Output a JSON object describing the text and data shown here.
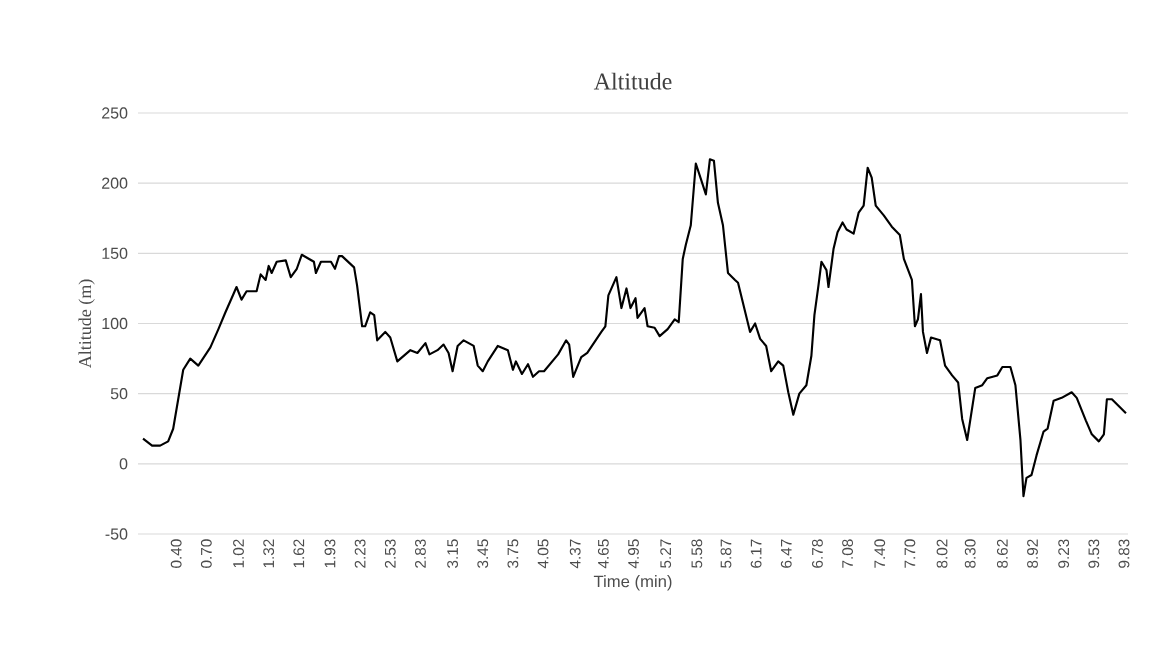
{
  "chart_data": {
    "type": "line",
    "title": "Altitude",
    "xlabel": "Time (min)",
    "ylabel": "Altitude (m)",
    "x": [
      0.07,
      0.16,
      0.24,
      0.32,
      0.37,
      0.42,
      0.47,
      0.54,
      0.62,
      0.74,
      0.82,
      0.89,
      0.97,
      1.0,
      1.05,
      1.1,
      1.2,
      1.24,
      1.29,
      1.32,
      1.35,
      1.4,
      1.49,
      1.54,
      1.6,
      1.65,
      1.77,
      1.79,
      1.84,
      1.94,
      1.98,
      2.02,
      2.05,
      2.17,
      2.2,
      2.25,
      2.28,
      2.33,
      2.37,
      2.4,
      2.48,
      2.53,
      2.6,
      2.73,
      2.8,
      2.88,
      2.92,
      3.0,
      3.06,
      3.11,
      3.15,
      3.2,
      3.26,
      3.36,
      3.4,
      3.45,
      3.5,
      3.6,
      3.7,
      3.75,
      3.78,
      3.84,
      3.9,
      3.95,
      4.01,
      4.06,
      4.2,
      4.28,
      4.31,
      4.35,
      4.43,
      4.49,
      4.63,
      4.67,
      4.7,
      4.78,
      4.83,
      4.88,
      4.92,
      4.97,
      4.99,
      5.06,
      5.09,
      5.16,
      5.21,
      5.29,
      5.36,
      5.4,
      5.44,
      5.47,
      5.52,
      5.57,
      5.62,
      5.67,
      5.71,
      5.75,
      5.79,
      5.84,
      5.89,
      5.96,
      5.99,
      6.11,
      6.16,
      6.21,
      6.27,
      6.32,
      6.39,
      6.44,
      6.49,
      6.54,
      6.6,
      6.67,
      6.72,
      6.75,
      6.79,
      6.82,
      6.87,
      6.89,
      6.94,
      6.98,
      7.03,
      7.07,
      7.14,
      7.19,
      7.24,
      7.28,
      7.32,
      7.36,
      7.44,
      7.52,
      7.6,
      7.64,
      7.72,
      7.75,
      7.78,
      7.81,
      7.83,
      7.87,
      7.91,
      8.0,
      8.05,
      8.12,
      8.18,
      8.22,
      8.27,
      8.35,
      8.42,
      8.47,
      8.57,
      8.62,
      8.7,
      8.75,
      8.8,
      8.83,
      8.86,
      8.91,
      8.96,
      9.03,
      9.07,
      9.13,
      9.21,
      9.31,
      9.36,
      9.45,
      9.51,
      9.58,
      9.63,
      9.66,
      9.71,
      9.78,
      9.85
    ],
    "series": [
      {
        "color": "#000000",
        "values": [
          18,
          13,
          13,
          16,
          25,
          46,
          67,
          75,
          70,
          83,
          96,
          108,
          121,
          126,
          117,
          123,
          123,
          135,
          131,
          141,
          136,
          144,
          145,
          133,
          139,
          149,
          144,
          136,
          144,
          144,
          139,
          148,
          148,
          140,
          127,
          98,
          98,
          108,
          106,
          88,
          94,
          90,
          73,
          81,
          79,
          86,
          78,
          81,
          85,
          79,
          66,
          84,
          88,
          84,
          70,
          66,
          73,
          84,
          81,
          67,
          73,
          64,
          71,
          62,
          66,
          66,
          78,
          88,
          85,
          62,
          76,
          79,
          94,
          98,
          120,
          133,
          111,
          125,
          111,
          118,
          104,
          111,
          98,
          97,
          91,
          96,
          103,
          101,
          146,
          156,
          170,
          214,
          203,
          192,
          217,
          216,
          186,
          170,
          136,
          131,
          129,
          94,
          100,
          89,
          84,
          66,
          73,
          70,
          51,
          35,
          50,
          56,
          77,
          106,
          127,
          144,
          138,
          126,
          153,
          165,
          172,
          167,
          164,
          179,
          184,
          211,
          204,
          184,
          177,
          169,
          163,
          146,
          131,
          98,
          103,
          121,
          94,
          79,
          90,
          88,
          70,
          63,
          58,
          32,
          17,
          54,
          56,
          61,
          63,
          69,
          69,
          56,
          17,
          -23,
          -10,
          -8,
          6,
          23,
          25,
          45,
          47,
          51,
          47,
          31,
          21,
          16,
          21,
          46,
          46,
          41,
          36
        ]
      }
    ],
    "xlim": [
      0.02,
      9.87
    ],
    "ylim": [
      -50,
      250
    ],
    "yticks": [
      -50,
      0,
      50,
      100,
      150,
      200,
      250
    ],
    "xticks": [
      {
        "value": 0.4,
        "label": "0.40"
      },
      {
        "value": 0.7,
        "label": "0.70"
      },
      {
        "value": 1.02,
        "label": "1.02"
      },
      {
        "value": 1.32,
        "label": "1.32"
      },
      {
        "value": 1.62,
        "label": "1.62"
      },
      {
        "value": 1.93,
        "label": "1.93"
      },
      {
        "value": 2.23,
        "label": "2.23"
      },
      {
        "value": 2.53,
        "label": "2.53"
      },
      {
        "value": 2.83,
        "label": "2.83"
      },
      {
        "value": 3.15,
        "label": "3.15"
      },
      {
        "value": 3.45,
        "label": "3.45"
      },
      {
        "value": 3.75,
        "label": "3.75"
      },
      {
        "value": 4.05,
        "label": "4.05"
      },
      {
        "value": 4.37,
        "label": "4.37"
      },
      {
        "value": 4.65,
        "label": "4.65"
      },
      {
        "value": 4.95,
        "label": "4.95"
      },
      {
        "value": 5.27,
        "label": "5.27"
      },
      {
        "value": 5.58,
        "label": "5.58"
      },
      {
        "value": 5.87,
        "label": "5.87"
      },
      {
        "value": 6.17,
        "label": "6.17"
      },
      {
        "value": 6.47,
        "label": "6.47"
      },
      {
        "value": 6.78,
        "label": "6.78"
      },
      {
        "value": 7.08,
        "label": "7.08"
      },
      {
        "value": 7.4,
        "label": "7.40"
      },
      {
        "value": 7.7,
        "label": "7.70"
      },
      {
        "value": 8.02,
        "label": "8.02"
      },
      {
        "value": 8.3,
        "label": "8.30"
      },
      {
        "value": 8.62,
        "label": "8.62"
      },
      {
        "value": 8.92,
        "label": "8.92"
      },
      {
        "value": 9.23,
        "label": "9.23"
      },
      {
        "value": 9.53,
        "label": "9.53"
      },
      {
        "value": 9.83,
        "label": "9.83"
      }
    ],
    "grid": "y"
  }
}
